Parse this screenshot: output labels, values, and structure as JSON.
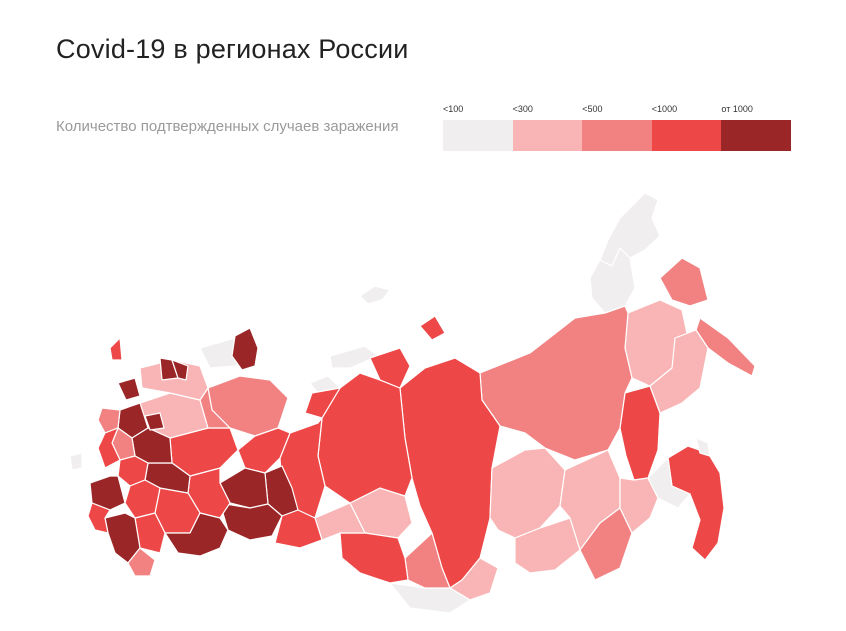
{
  "header": {
    "title": "Covid-19 в регионах России",
    "subtitle": "Количество подтвержденных случаев заражения"
  },
  "legend": {
    "items": [
      {
        "label": "<100",
        "color": "#f0eeee"
      },
      {
        "label": "<300",
        "color": "#f9b5b5"
      },
      {
        "label": "<500",
        "color": "#f28282"
      },
      {
        "label": "<1000",
        "color": "#ee4747"
      },
      {
        "label": "от 1000",
        "color": "#9b2628"
      }
    ]
  }
}
